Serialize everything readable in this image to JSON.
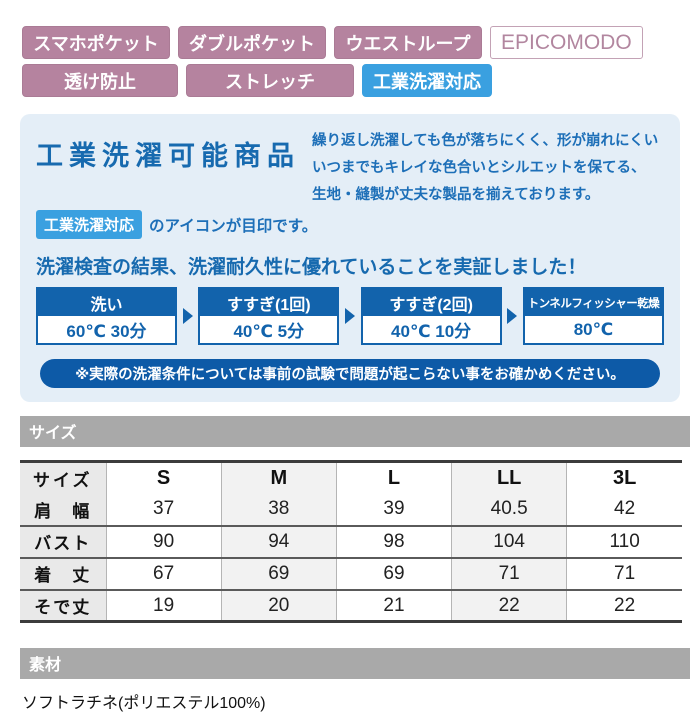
{
  "colors": {
    "badge_pink": "#b5839f",
    "badge_blue": "#3aa0e0",
    "panel_bg": "#e4eef7",
    "text_blue": "#1d6fb8",
    "process_blue": "#1263ac",
    "caution_bg": "#0d5aa7",
    "section_bar_bg": "#a9a9a9"
  },
  "badges": {
    "row1": [
      {
        "label": "スマホポケット"
      },
      {
        "label": "ダブルポケット"
      },
      {
        "label": "ウエストループ"
      },
      {
        "label": "EPICOMODO"
      }
    ],
    "row2": [
      {
        "label": "透け防止"
      },
      {
        "label": "ストレッチ"
      },
      {
        "label": "工業洗濯対応"
      }
    ]
  },
  "wash_panel": {
    "title": "工業洗濯可能商品",
    "description_lines": [
      "繰り返し洗濯しても色が落ちにくく、形が崩れにくい",
      "いつまでもキレイな色合いとシルエットを保てる、",
      "生地・縫製が丈夫な製品を揃えております。"
    ],
    "icon_badge": "工業洗濯対応",
    "icon_note": "のアイコンが目印です。",
    "result_heading": "洗濯検査の結果、洗濯耐久性に優れていることを実証しました！",
    "process_steps": [
      {
        "name": "洗い",
        "value": "60℃ 30分"
      },
      {
        "name": "すすぎ(1回)",
        "value": "40℃ 5分"
      },
      {
        "name": "すすぎ(2回)",
        "value": "40℃ 10分"
      },
      {
        "name": "トンネルフィッシャー乾燥",
        "value": "80℃"
      }
    ],
    "caution": "※実際の洗濯条件については事前の試験で問題が起こらない事をお確かめください。"
  },
  "size_section": {
    "heading": "サイズ",
    "table": {
      "header_label": "サイズ",
      "columns": [
        "S",
        "M",
        "L",
        "LL",
        "3L"
      ],
      "rows": [
        {
          "label": "肩　幅",
          "values": [
            "37",
            "38",
            "39",
            "40.5",
            "42"
          ]
        },
        {
          "label": "バスト",
          "values": [
            "90",
            "94",
            "98",
            "104",
            "110"
          ]
        },
        {
          "label": "着　丈",
          "values": [
            "67",
            "69",
            "69",
            "71",
            "71"
          ]
        },
        {
          "label": "そで丈",
          "values": [
            "19",
            "20",
            "21",
            "22",
            "22"
          ]
        }
      ]
    }
  },
  "material_section": {
    "heading": "素材",
    "text": "ソフトラチネ(ポリエステル100%)"
  }
}
